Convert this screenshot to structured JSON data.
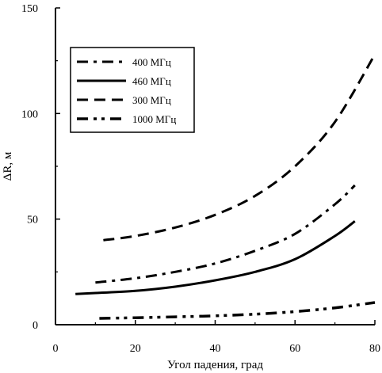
{
  "chart_data": {
    "type": "line",
    "title": "",
    "xlabel": "Угол падения, град",
    "ylabel": "ΔR, м",
    "xlim": [
      0,
      80
    ],
    "ylim": [
      0,
      150
    ],
    "x_ticks": [
      "0",
      "20",
      "40",
      "60",
      "80"
    ],
    "y_ticks": [
      "0",
      "50",
      "100",
      "150"
    ],
    "grid": false,
    "legend_position": "top-left",
    "series": [
      {
        "name": "400 МГц",
        "style": "dash-dot",
        "color": "#000000",
        "x": [
          10,
          20,
          30,
          40,
          50,
          60,
          70,
          75
        ],
        "y": [
          20,
          22,
          25,
          29,
          35,
          43,
          57,
          66
        ]
      },
      {
        "name": "460 МГц",
        "style": "solid",
        "color": "#000000",
        "x": [
          5,
          10,
          20,
          30,
          40,
          50,
          60,
          70,
          75
        ],
        "y": [
          14.5,
          15,
          16,
          18,
          21,
          25,
          31,
          42,
          49
        ]
      },
      {
        "name": "300 МГц",
        "style": "dash",
        "color": "#000000",
        "x": [
          12,
          20,
          30,
          40,
          50,
          60,
          70,
          80
        ],
        "y": [
          40,
          42,
          46,
          52,
          61,
          75,
          96,
          128
        ]
      },
      {
        "name": "1000 МГц",
        "style": "dash-dot-dot",
        "color": "#000000",
        "x": [
          11,
          20,
          30,
          40,
          50,
          60,
          70,
          80
        ],
        "y": [
          3,
          3.3,
          3.7,
          4.2,
          5,
          6.2,
          8,
          10.5
        ]
      }
    ]
  }
}
